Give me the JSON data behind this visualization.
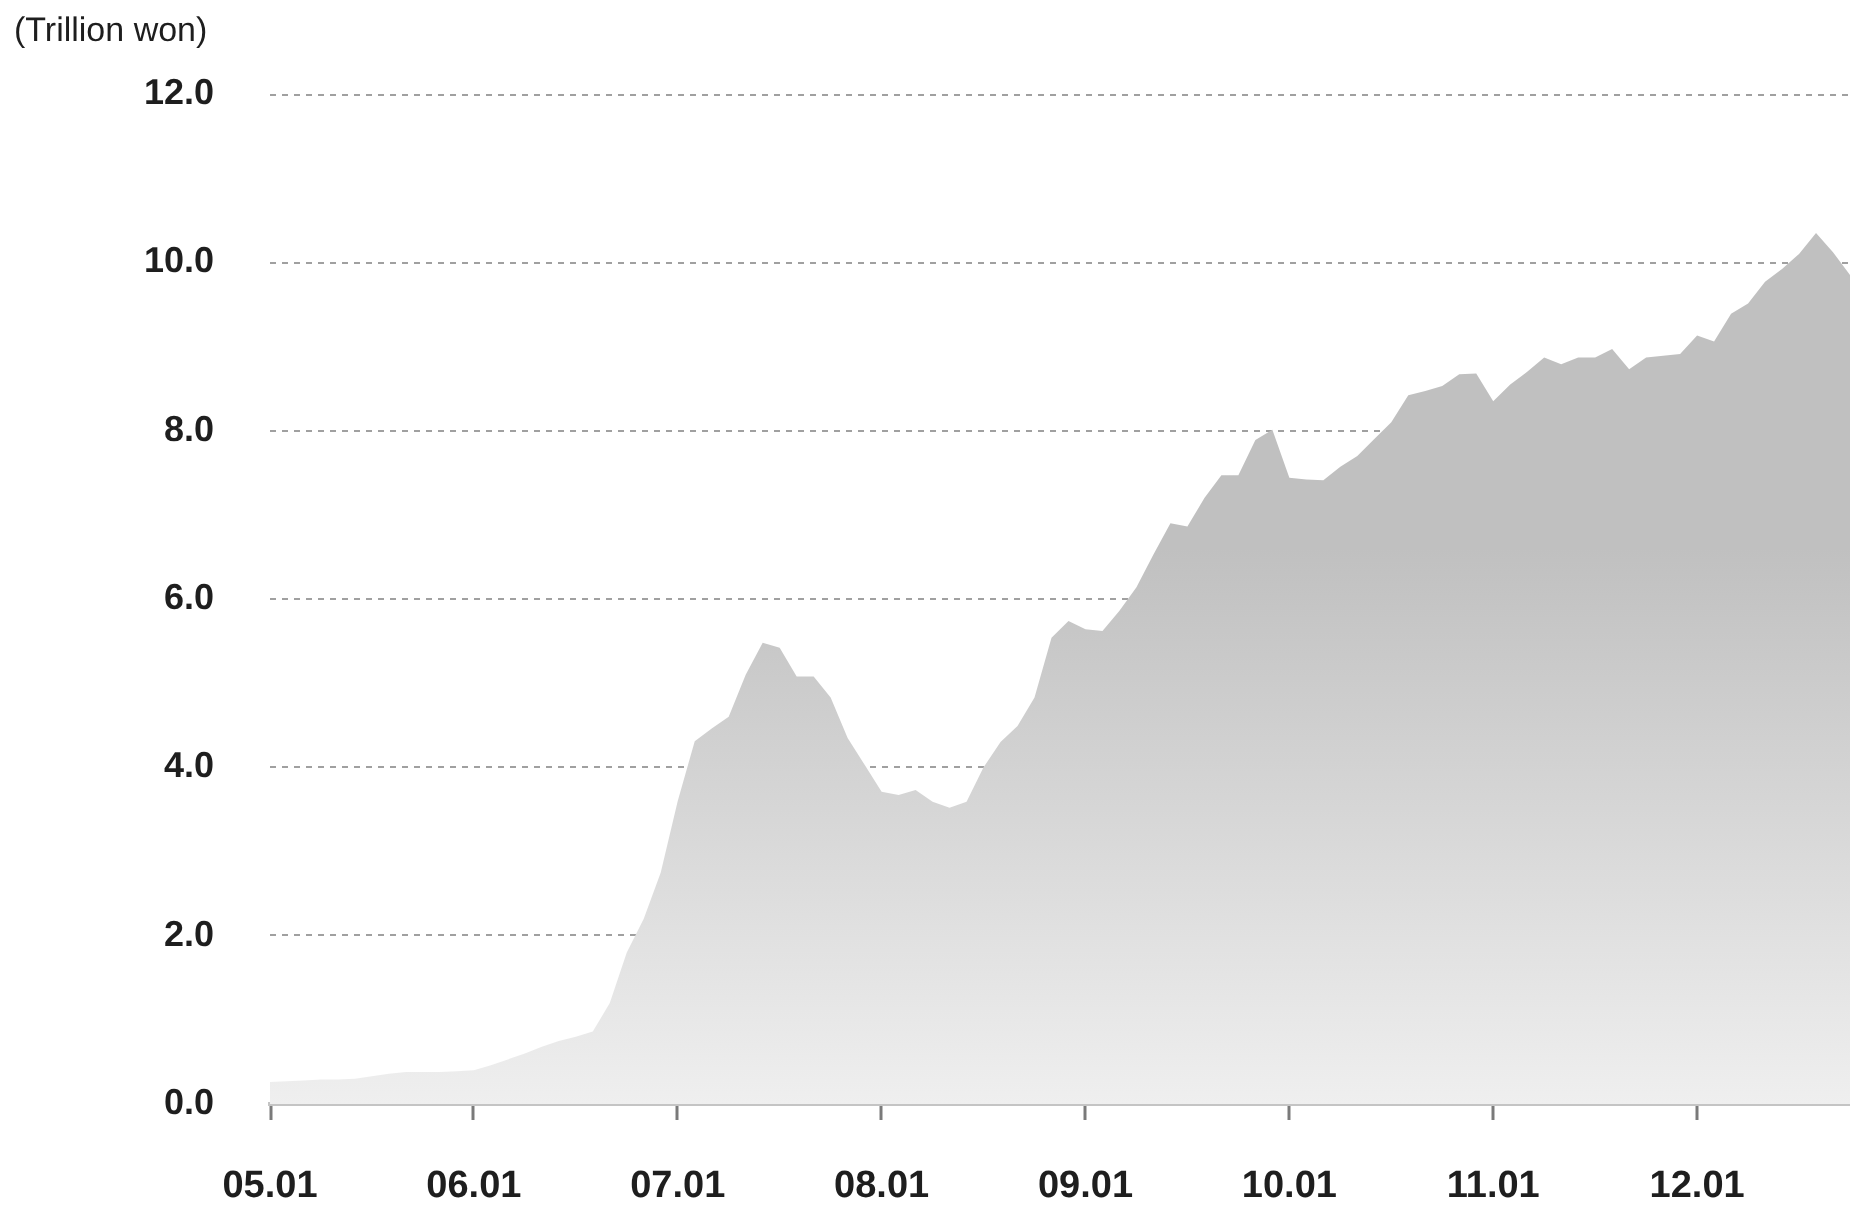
{
  "chart_data": {
    "type": "area",
    "ylabel": "(Trillion won)",
    "categories": [
      "05.01",
      null,
      null,
      null,
      null,
      null,
      null,
      null,
      null,
      null,
      null,
      null,
      "06.01",
      null,
      null,
      null,
      null,
      null,
      null,
      null,
      null,
      null,
      null,
      null,
      "07.01",
      null,
      null,
      null,
      null,
      null,
      null,
      null,
      null,
      null,
      null,
      null,
      "08.01",
      null,
      null,
      null,
      null,
      null,
      null,
      null,
      null,
      null,
      null,
      null,
      "09.01",
      null,
      null,
      null,
      null,
      null,
      null,
      null,
      null,
      null,
      null,
      null,
      "10.01",
      null,
      null,
      null,
      null,
      null,
      null,
      null,
      null,
      null,
      null,
      null,
      "11.01",
      null,
      null,
      null,
      null,
      null,
      null,
      null,
      null,
      null,
      null,
      null,
      "12.01",
      null,
      null,
      null,
      null,
      null,
      null,
      null,
      null,
      null
    ],
    "series": [
      {
        "color": "#c0c0c0",
        "values": [
          0.26,
          0.27,
          0.28,
          0.29,
          0.29,
          0.3,
          0.33,
          0.36,
          0.38,
          0.38,
          0.38,
          0.39,
          0.4,
          0.46,
          0.53,
          0.6,
          0.68,
          0.75,
          0.8,
          0.86,
          1.2,
          1.8,
          2.2,
          2.75,
          3.6,
          4.31,
          4.46,
          4.6,
          5.1,
          5.48,
          5.42,
          5.08,
          5.08,
          4.83,
          4.35,
          4.03,
          3.71,
          3.67,
          3.73,
          3.59,
          3.52,
          3.59,
          4.0,
          4.3,
          4.49,
          4.83,
          5.54,
          5.74,
          5.64,
          5.62,
          5.86,
          6.14,
          6.53,
          6.9,
          6.86,
          7.2,
          7.47,
          7.47,
          7.89,
          8.01,
          7.44,
          7.42,
          7.41,
          7.57,
          7.7,
          7.9,
          8.1,
          8.42,
          8.47,
          8.53,
          8.67,
          8.68,
          8.35,
          8.55,
          8.7,
          8.87,
          8.79,
          8.87,
          8.87,
          8.97,
          8.73,
          8.87,
          8.89,
          8.91,
          9.13,
          9.06,
          9.39,
          9.51,
          9.77,
          9.92,
          10.1,
          10.35,
          10.12,
          9.85
        ]
      }
    ],
    "ylim": [
      0,
      12
    ],
    "yticks": [
      {
        "value": 0,
        "label": "0.0"
      },
      {
        "value": 2,
        "label": "2.0"
      },
      {
        "value": 4,
        "label": "4.0"
      },
      {
        "value": 6,
        "label": "6.0"
      },
      {
        "value": 8,
        "label": "8.0"
      },
      {
        "value": 10,
        "label": "10.0"
      },
      {
        "value": 12,
        "label": "12.0"
      }
    ],
    "grid": "y"
  }
}
